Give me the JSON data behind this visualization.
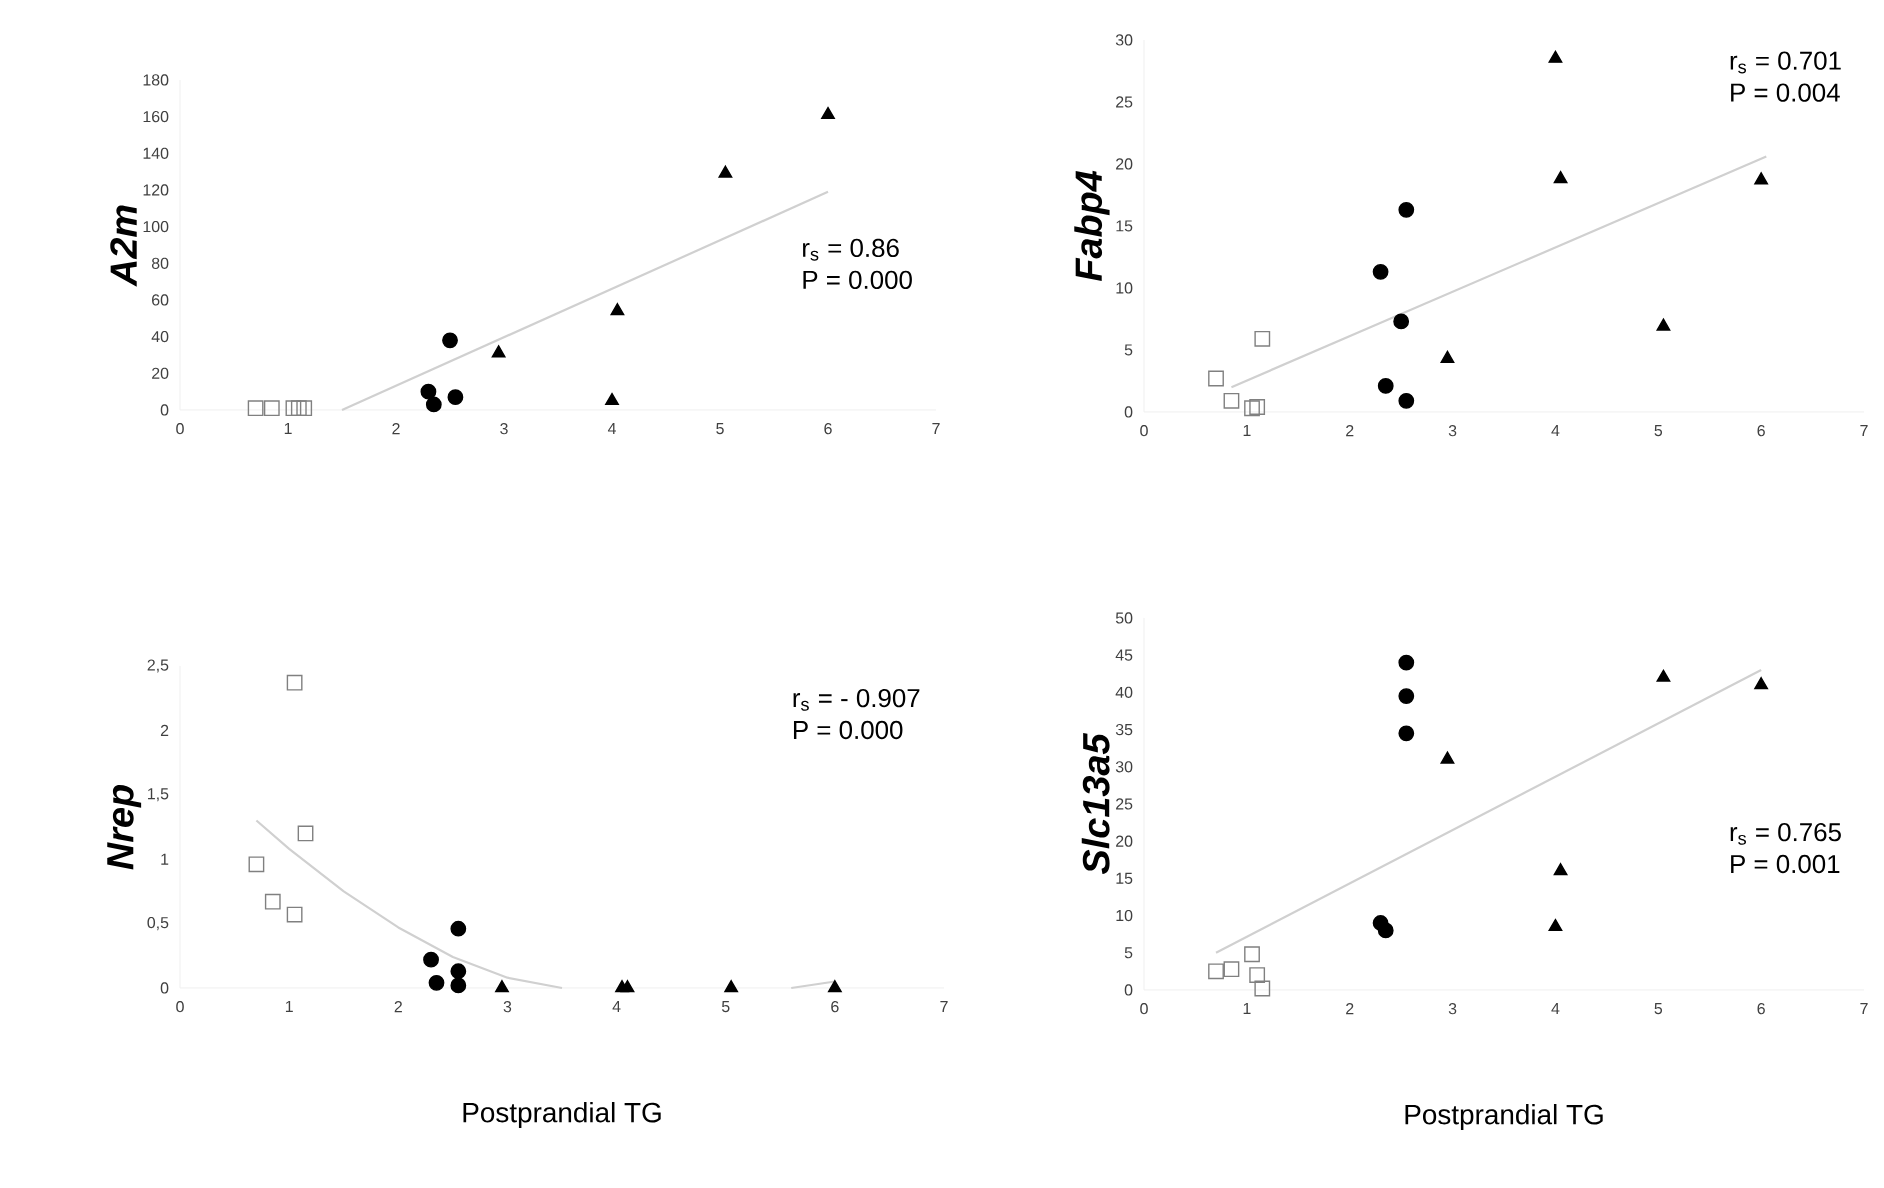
{
  "chart_data": [
    {
      "type": "scatter",
      "ylabel": "A2m",
      "xlim": [
        0,
        7
      ],
      "xticks": [
        0,
        1,
        2,
        3,
        4,
        5,
        6,
        7
      ],
      "ylim": [
        0,
        180
      ],
      "yticks": [
        0,
        20,
        40,
        60,
        80,
        100,
        120,
        140,
        160,
        180
      ],
      "annotations": [
        "r$_{s}$ = 0.86",
        "P = 0.000"
      ],
      "series": [
        {
          "x": [
            0.7,
            0.85,
            1.05,
            1.1,
            1.15
          ],
          "values": [
            1,
            1,
            1,
            1,
            1
          ],
          "color": "#808080",
          "marker": "square"
        },
        {
          "x": [
            2.3,
            2.35,
            2.5,
            2.55
          ],
          "values": [
            10,
            3,
            38,
            7
          ],
          "color": "#000000",
          "marker": "circle"
        },
        {
          "x": [
            2.95,
            4.0,
            4.05,
            5.05,
            6.0
          ],
          "values": [
            31,
            5,
            54,
            129,
            161
          ],
          "color": "#000000",
          "marker": "triangle"
        },
        {
          "type": "line",
          "x": [
            1.5,
            6.0
          ],
          "values": [
            0,
            119
          ],
          "color": "#d0d0d0",
          "marker": "none",
          "line_style": "solid"
        }
      ]
    },
    {
      "type": "scatter",
      "ylabel": "Fabp4",
      "xlim": [
        0,
        7
      ],
      "xticks": [
        0,
        1,
        2,
        3,
        4,
        5,
        6,
        7
      ],
      "ylim": [
        0,
        30
      ],
      "yticks": [
        0,
        5,
        10,
        15,
        20,
        25,
        30
      ],
      "annotations": [
        "r$_{s}$ = 0.701",
        "P = 0.004"
      ],
      "series": [
        {
          "x": [
            0.7,
            0.85,
            1.05,
            1.1,
            1.15
          ],
          "values": [
            2.7,
            0.9,
            0.3,
            0.4,
            5.9
          ],
          "color": "#808080",
          "marker": "square"
        },
        {
          "x": [
            2.3,
            2.35,
            2.5,
            2.55,
            2.55
          ],
          "values": [
            11.3,
            2.1,
            7.3,
            16.3,
            0.9
          ],
          "color": "#000000",
          "marker": "circle"
        },
        {
          "x": [
            2.95,
            4.0,
            4.05,
            5.05,
            6.0
          ],
          "values": [
            4.3,
            28.5,
            18.8,
            6.9,
            18.7
          ],
          "color": "#000000",
          "marker": "triangle"
        },
        {
          "type": "line",
          "x": [
            0.85,
            6.05
          ],
          "values": [
            2,
            20.6
          ],
          "color": "#d0d0d0",
          "marker": "none",
          "line_style": "solid"
        }
      ]
    },
    {
      "type": "scatter",
      "ylabel": "Nrep",
      "xlabel": "Postprandial TG",
      "xlim": [
        0,
        7
      ],
      "xticks": [
        0,
        1,
        2,
        3,
        4,
        5,
        6,
        7
      ],
      "ylim": [
        0,
        2.5
      ],
      "yticks": [
        0,
        {
          "value": 0.5,
          "label": "0,5"
        },
        1,
        {
          "value": 1.5,
          "label": "1,5"
        },
        2,
        {
          "value": 2.5,
          "label": "2,5"
        }
      ],
      "annotations": [
        "r$_{s}$ = - 0.907",
        "P = 0.000"
      ],
      "series": [
        {
          "x": [
            0.7,
            0.85,
            1.05,
            1.05,
            1.15
          ],
          "values": [
            0.96,
            0.67,
            2.37,
            0.57,
            1.2
          ],
          "color": "#808080",
          "marker": "square"
        },
        {
          "x": [
            2.3,
            2.35,
            2.55,
            2.55,
            2.55
          ],
          "values": [
            0.22,
            0.04,
            0.46,
            0.13,
            0.02
          ],
          "color": "#000000",
          "marker": "circle"
        },
        {
          "x": [
            2.95,
            4.05,
            4.1,
            5.05,
            6.0
          ],
          "values": [
            0,
            0,
            0,
            0,
            0
          ],
          "color": "#000000",
          "marker": "triangle"
        },
        {
          "type": "line",
          "x": [
            0.7,
            1.0,
            1.5,
            2.0,
            2.5,
            3.0,
            3.5,
            4.5,
            5.6,
            6.0
          ],
          "values": [
            1.3,
            1.08,
            0.75,
            0.47,
            0.24,
            0.08,
            0,
            null,
            0,
            0.05
          ],
          "color": "#d0d0d0",
          "marker": "none",
          "line_style": "solid"
        }
      ]
    },
    {
      "type": "scatter",
      "ylabel": "Slc13a5",
      "xlabel": "Postprandial TG",
      "xlim": [
        0,
        7
      ],
      "xticks": [
        0,
        1,
        2,
        3,
        4,
        5,
        6,
        7
      ],
      "ylim": [
        0,
        50
      ],
      "yticks": [
        0,
        5,
        10,
        15,
        20,
        25,
        30,
        35,
        40,
        45,
        50
      ],
      "annotations": [
        "r$_{s}$ = 0.765",
        "P = 0.001"
      ],
      "series": [
        {
          "x": [
            0.7,
            0.85,
            1.05,
            1.1,
            1.15
          ],
          "values": [
            2.5,
            2.8,
            4.8,
            2.0,
            0.2
          ],
          "color": "#808080",
          "marker": "square"
        },
        {
          "x": [
            2.3,
            2.35,
            2.55,
            2.55,
            2.55
          ],
          "values": [
            9,
            8,
            44,
            39.5,
            34.5
          ],
          "color": "#000000",
          "marker": "circle"
        },
        {
          "x": [
            2.95,
            4.0,
            4.05,
            5.05,
            6.0
          ],
          "values": [
            31,
            8.5,
            16,
            42,
            41
          ],
          "color": "#000000",
          "marker": "triangle"
        },
        {
          "type": "line",
          "x": [
            0.7,
            6.0
          ],
          "values": [
            5,
            43
          ],
          "color": "#d0d0d0",
          "marker": "none",
          "line_style": "solid"
        }
      ]
    }
  ]
}
